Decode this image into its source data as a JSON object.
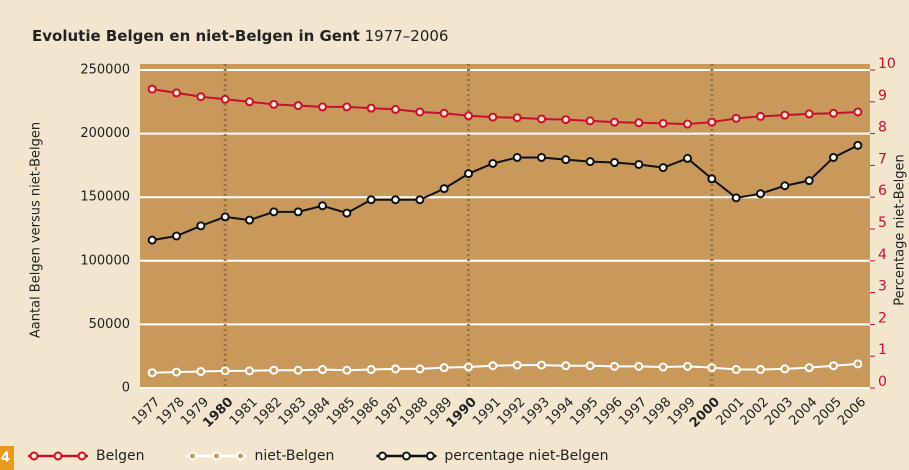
{
  "chart_data": {
    "type": "line",
    "title": "Evolutie Belgen en niet-Belgen in Gent",
    "subtitle": "1977–2006",
    "page_number": "4",
    "ylabel": "Aantal Belgen versus niet-Belgen",
    "y2label": "Percentage niet-Belgen",
    "categories": [
      "1977",
      "1978",
      "1979",
      "1980",
      "1981",
      "1982",
      "1983",
      "1984",
      "1985",
      "1986",
      "1987",
      "1988",
      "1989",
      "1990",
      "1991",
      "1992",
      "1993",
      "1994",
      "1995",
      "1996",
      "1997",
      "1998",
      "1999",
      "2000",
      "2001",
      "2002",
      "2003",
      "2004",
      "2005",
      "2006"
    ],
    "emphasis": [
      3,
      13,
      23
    ],
    "ylim": [
      0,
      250000
    ],
    "yticks": [
      0,
      50000,
      100000,
      150000,
      200000,
      250000
    ],
    "y2lim": [
      0,
      10
    ],
    "y2ticks": [
      0,
      1,
      2,
      3,
      4,
      5,
      6,
      7,
      8,
      9,
      10
    ],
    "grid": true,
    "series": [
      {
        "name": "Belgen",
        "color": "#c8102e",
        "marker_fill": "#f3e6cf",
        "values": [
          235000,
          232000,
          229000,
          227000,
          225000,
          223000,
          222000,
          221000,
          221000,
          220000,
          219000,
          217000,
          216000,
          214000,
          213000,
          212500,
          211500,
          211000,
          210000,
          209000,
          208500,
          208000,
          207500,
          209000,
          212000,
          213500,
          214500,
          215500,
          216000,
          217000
        ]
      },
      {
        "name": "niet-Belgen",
        "color": "#ffffff",
        "marker_fill": "#c8995a",
        "values": [
          12000,
          12500,
          13000,
          13500,
          13500,
          14000,
          14000,
          14500,
          14000,
          14500,
          15000,
          15000,
          16000,
          16500,
          17500,
          18000,
          18000,
          17500,
          17500,
          17000,
          17000,
          16500,
          17000,
          16000,
          14500,
          14500,
          15000,
          16000,
          17500,
          19000
        ]
      },
      {
        "name": "percentage niet-Belgen",
        "color": "#111111",
        "marker_fill": "#ffffff",
        "axis": "y2",
        "values": [
          4.65,
          4.78,
          5.1,
          5.38,
          5.28,
          5.54,
          5.54,
          5.73,
          5.5,
          5.92,
          5.92,
          5.92,
          6.27,
          6.74,
          7.06,
          7.25,
          7.25,
          7.18,
          7.12,
          7.09,
          7.03,
          6.93,
          7.22,
          6.58,
          5.98,
          6.11,
          6.36,
          6.52,
          7.25,
          7.63
        ]
      }
    ]
  }
}
